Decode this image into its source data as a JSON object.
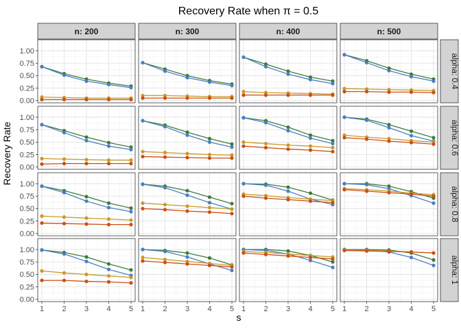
{
  "chart_data": {
    "type": "line",
    "title": "Recovery Rate when π = 0.5",
    "xlabel": "s",
    "ylabel": "Recovery Rate",
    "x": [
      1,
      2,
      3,
      4,
      5
    ],
    "xticks": [
      "1",
      "2",
      "3",
      "4",
      "5"
    ],
    "ylim": [
      0,
      1.0
    ],
    "yticks": [
      "0.00",
      "0.25",
      "0.50",
      "0.75",
      "1.00"
    ],
    "grid": true,
    "legend": "none",
    "col_facets": [
      "n: 200",
      "n: 300",
      "n: 400",
      "n: 500"
    ],
    "row_facets": [
      "alpha: 0.4",
      "alpha: 0.6",
      "alpha: 0.8",
      "alpha: 1"
    ],
    "series_colors": [
      "#3e7a3e",
      "#4a7fc1",
      "#c99a26",
      "#cc4e12"
    ],
    "panels": [
      [
        {
          "series": [
            [
              0.68,
              0.54,
              0.43,
              0.35,
              0.29
            ],
            [
              0.68,
              0.51,
              0.39,
              0.32,
              0.26
            ],
            [
              0.07,
              0.06,
              0.05,
              0.05,
              0.05
            ],
            [
              0.02,
              0.02,
              0.02,
              0.02,
              0.02
            ]
          ]
        },
        {
          "series": [
            [
              0.76,
              0.63,
              0.5,
              0.4,
              0.33
            ],
            [
              0.76,
              0.59,
              0.46,
              0.37,
              0.3
            ],
            [
              0.1,
              0.1,
              0.09,
              0.08,
              0.08
            ],
            [
              0.05,
              0.05,
              0.05,
              0.05,
              0.05
            ]
          ]
        },
        {
          "series": [
            [
              0.87,
              0.73,
              0.59,
              0.47,
              0.39
            ],
            [
              0.87,
              0.68,
              0.53,
              0.42,
              0.34
            ],
            [
              0.18,
              0.16,
              0.15,
              0.14,
              0.13
            ],
            [
              0.11,
              0.11,
              0.11,
              0.11,
              0.11
            ]
          ]
        },
        {
          "series": [
            [
              0.92,
              0.8,
              0.65,
              0.53,
              0.43
            ],
            [
              0.92,
              0.76,
              0.6,
              0.48,
              0.39
            ],
            [
              0.24,
              0.23,
              0.22,
              0.21,
              0.2
            ],
            [
              0.18,
              0.18,
              0.17,
              0.17,
              0.16
            ]
          ]
        }
      ],
      [
        {
          "series": [
            [
              0.85,
              0.73,
              0.6,
              0.49,
              0.4
            ],
            [
              0.85,
              0.69,
              0.53,
              0.42,
              0.35
            ],
            [
              0.17,
              0.16,
              0.15,
              0.14,
              0.14
            ],
            [
              0.06,
              0.07,
              0.07,
              0.07,
              0.07
            ]
          ]
        },
        {
          "series": [
            [
              0.93,
              0.84,
              0.7,
              0.57,
              0.46
            ],
            [
              0.93,
              0.81,
              0.64,
              0.5,
              0.4
            ],
            [
              0.31,
              0.29,
              0.27,
              0.25,
              0.24
            ],
            [
              0.21,
              0.2,
              0.19,
              0.18,
              0.18
            ]
          ]
        },
        {
          "series": [
            [
              0.99,
              0.93,
              0.8,
              0.64,
              0.53
            ],
            [
              0.99,
              0.89,
              0.73,
              0.58,
              0.47
            ],
            [
              0.5,
              0.47,
              0.44,
              0.42,
              0.39
            ],
            [
              0.42,
              0.39,
              0.36,
              0.34,
              0.31
            ]
          ]
        },
        {
          "series": [
            [
              1.0,
              0.96,
              0.85,
              0.72,
              0.59
            ],
            [
              1.0,
              0.94,
              0.79,
              0.63,
              0.52
            ],
            [
              0.64,
              0.6,
              0.57,
              0.53,
              0.5
            ],
            [
              0.59,
              0.56,
              0.52,
              0.49,
              0.46
            ]
          ]
        }
      ],
      [
        {
          "series": [
            [
              0.95,
              0.86,
              0.74,
              0.61,
              0.51
            ],
            [
              0.95,
              0.82,
              0.65,
              0.52,
              0.44
            ],
            [
              0.35,
              0.33,
              0.31,
              0.29,
              0.27
            ],
            [
              0.21,
              0.2,
              0.19,
              0.18,
              0.18
            ]
          ]
        },
        {
          "series": [
            [
              0.99,
              0.95,
              0.86,
              0.73,
              0.6
            ],
            [
              0.99,
              0.92,
              0.77,
              0.62,
              0.49
            ],
            [
              0.61,
              0.58,
              0.55,
              0.52,
              0.49
            ],
            [
              0.5,
              0.48,
              0.45,
              0.43,
              0.4
            ]
          ]
        },
        {
          "series": [
            [
              1.0,
              0.99,
              0.93,
              0.81,
              0.67
            ],
            [
              1.0,
              0.97,
              0.85,
              0.69,
              0.58
            ],
            [
              0.79,
              0.76,
              0.72,
              0.69,
              0.66
            ],
            [
              0.75,
              0.71,
              0.68,
              0.65,
              0.62
            ]
          ]
        },
        {
          "series": [
            [
              1.0,
              1.0,
              0.95,
              0.84,
              0.71
            ],
            [
              1.0,
              0.98,
              0.9,
              0.76,
              0.61
            ],
            [
              0.9,
              0.88,
              0.85,
              0.81,
              0.78
            ],
            [
              0.88,
              0.85,
              0.82,
              0.79,
              0.75
            ]
          ]
        }
      ],
      [
        {
          "series": [
            [
              0.99,
              0.94,
              0.85,
              0.71,
              0.59
            ],
            [
              0.99,
              0.91,
              0.76,
              0.6,
              0.48
            ],
            [
              0.57,
              0.53,
              0.5,
              0.47,
              0.44
            ],
            [
              0.38,
              0.38,
              0.36,
              0.35,
              0.33
            ]
          ]
        },
        {
          "series": [
            [
              1.0,
              0.98,
              0.93,
              0.83,
              0.69
            ],
            [
              1.0,
              0.96,
              0.85,
              0.71,
              0.58
            ],
            [
              0.84,
              0.8,
              0.76,
              0.72,
              0.68
            ],
            [
              0.77,
              0.74,
              0.71,
              0.68,
              0.65
            ]
          ]
        },
        {
          "series": [
            [
              1.0,
              1.0,
              0.97,
              0.88,
              0.75
            ],
            [
              1.0,
              0.98,
              0.91,
              0.78,
              0.64
            ],
            [
              0.96,
              0.94,
              0.91,
              0.88,
              0.85
            ],
            [
              0.93,
              0.9,
              0.87,
              0.84,
              0.81
            ]
          ]
        },
        {
          "series": [
            [
              1.0,
              1.0,
              0.99,
              0.93,
              0.79
            ],
            [
              1.0,
              0.99,
              0.95,
              0.84,
              0.68
            ],
            [
              0.99,
              0.98,
              0.97,
              0.95,
              0.93
            ],
            [
              0.98,
              0.97,
              0.96,
              0.95,
              0.93
            ]
          ]
        }
      ]
    ]
  }
}
